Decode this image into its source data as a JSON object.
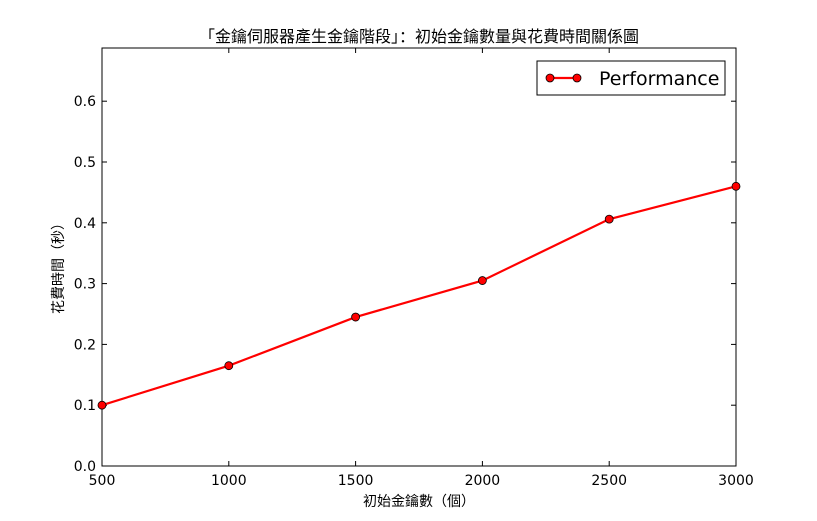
{
  "chart_data": {
    "type": "line",
    "title": "「金鑰伺服器產生金鑰階段」：初始金鑰數量與花費時間關係圖",
    "xlabel": "初始金鑰數（個）",
    "ylabel": "花費時間（秒）",
    "x": [
      500,
      1000,
      1500,
      2000,
      2500,
      3000
    ],
    "series": [
      {
        "name": "Performance",
        "values": [
          0.1,
          0.165,
          0.245,
          0.305,
          0.406,
          0.46
        ],
        "color": "#ff0000"
      }
    ],
    "xlim": [
      500,
      3000
    ],
    "ylim": [
      0,
      0.6875
    ],
    "x_ticks": [
      500,
      1000,
      1500,
      2000,
      2500,
      3000
    ],
    "y_ticks": [
      0.0,
      0.1,
      0.2,
      0.3,
      0.4,
      0.5,
      0.6
    ],
    "y_tick_labels": [
      "0.0",
      "0.1",
      "0.2",
      "0.3",
      "0.4",
      "0.5",
      "0.6"
    ],
    "grid": false,
    "legend": "top-right"
  }
}
